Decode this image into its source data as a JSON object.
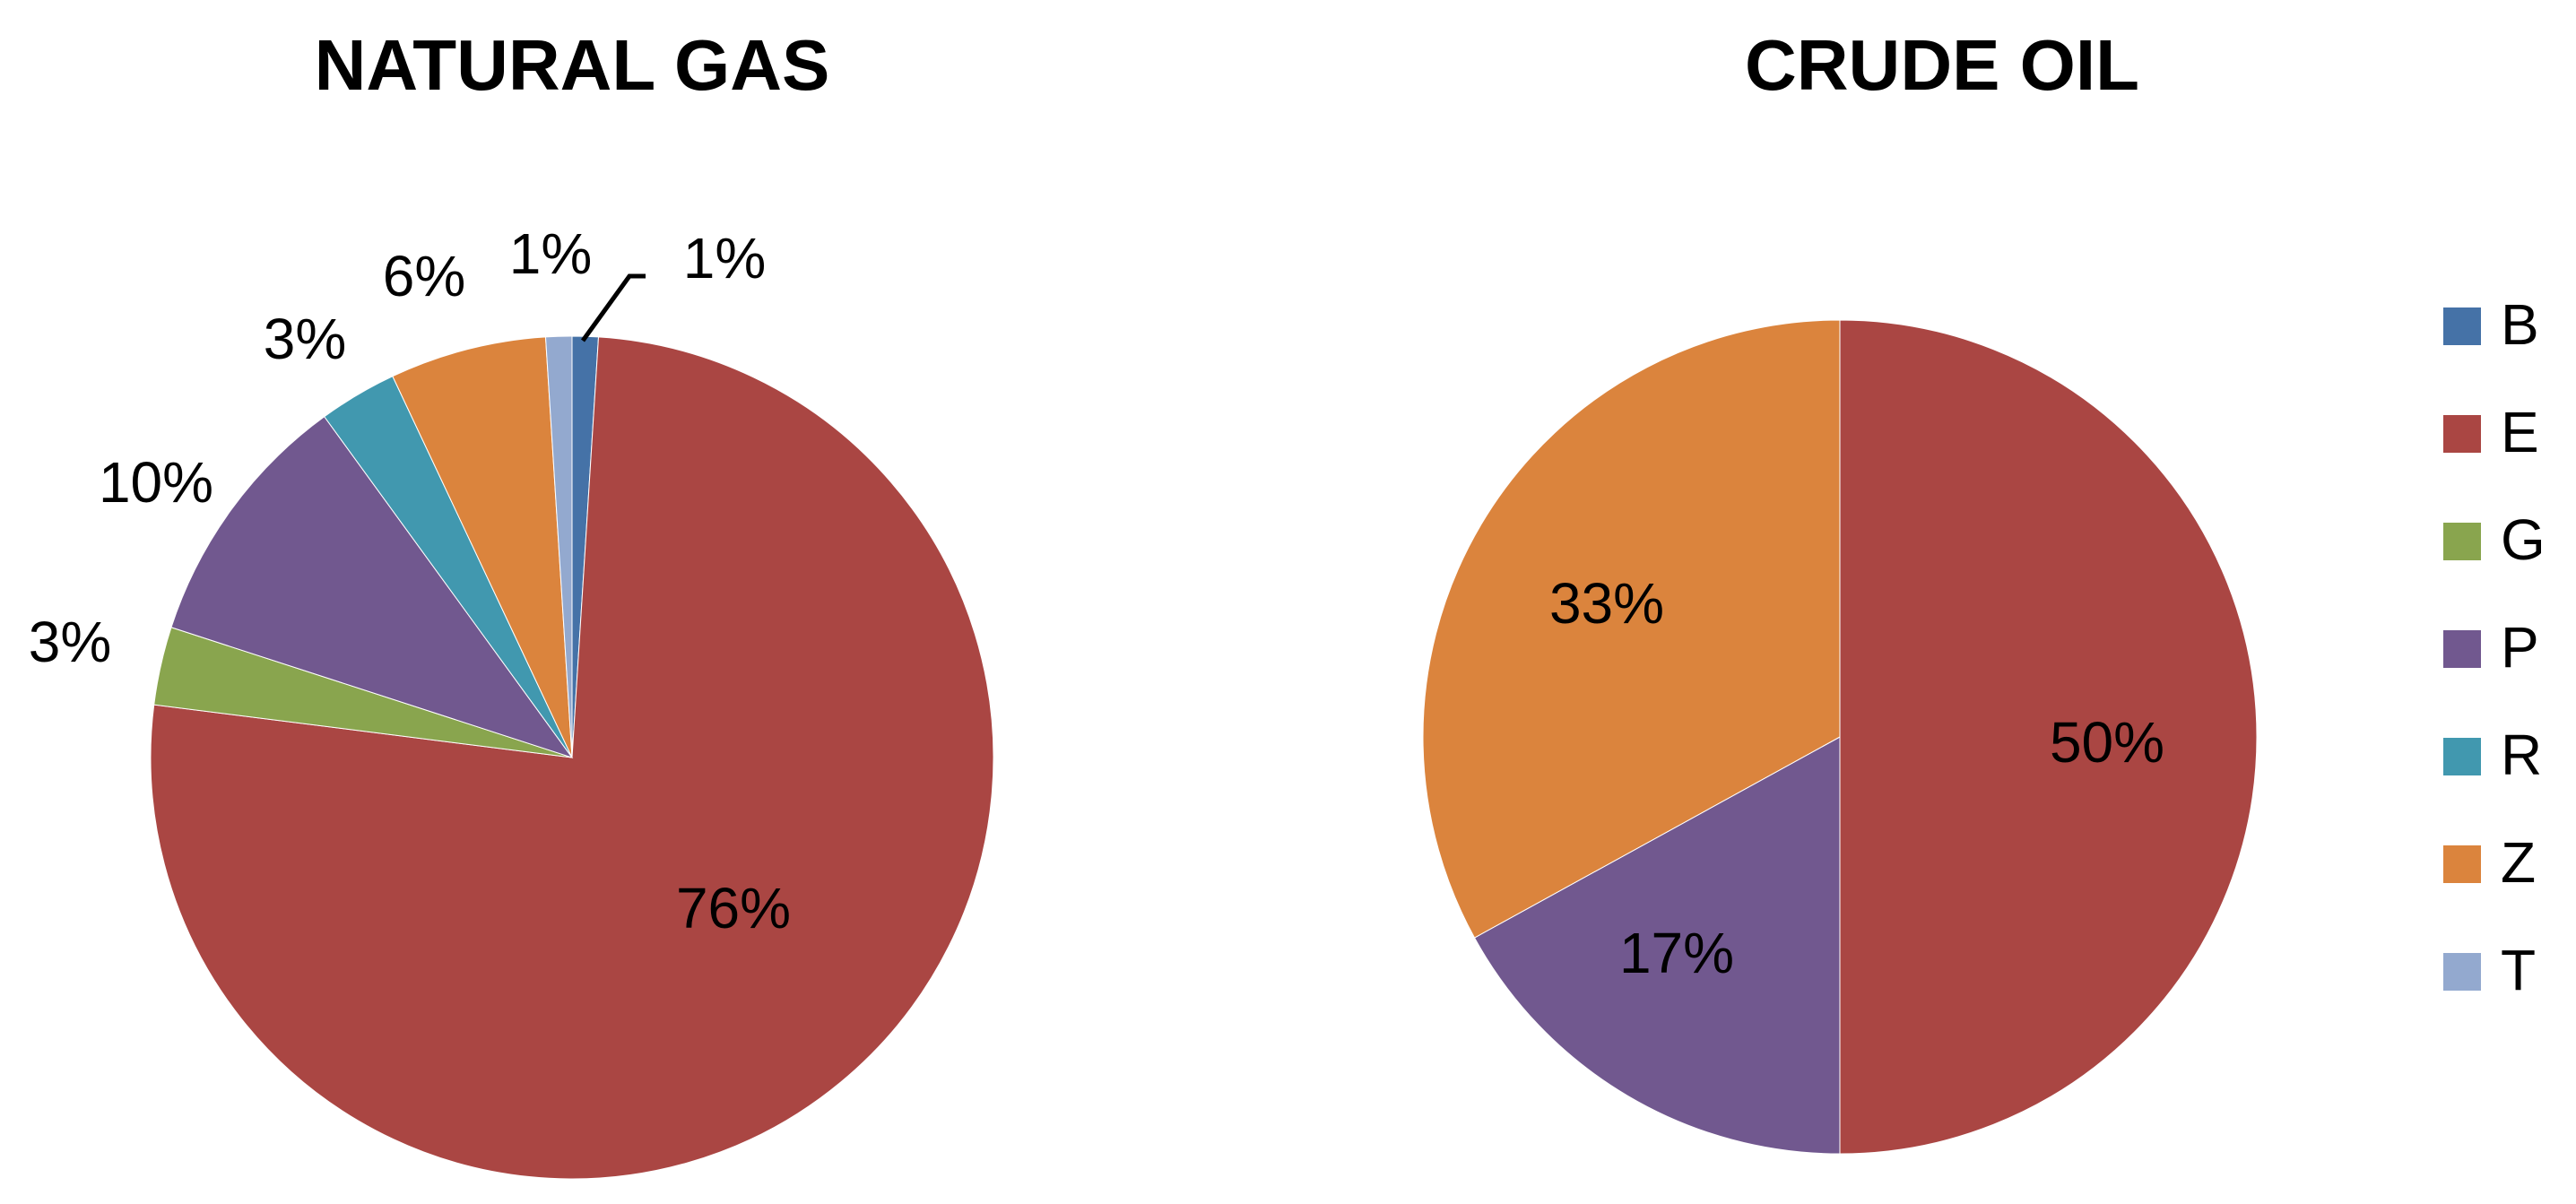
{
  "chart_data": [
    {
      "type": "pie",
      "title": "NATURAL GAS",
      "slices": [
        {
          "category": "B",
          "value": 1,
          "label": "1%",
          "color": "#4572A7"
        },
        {
          "category": "E",
          "value": 76,
          "label": "76%",
          "color": "#AA4643"
        },
        {
          "category": "G",
          "value": 3,
          "label": "3%",
          "color": "#89A54E"
        },
        {
          "category": "P",
          "value": 10,
          "label": "10%",
          "color": "#71588F"
        },
        {
          "category": "R",
          "value": 3,
          "label": "3%",
          "color": "#4198AF"
        },
        {
          "category": "Z",
          "value": 6,
          "label": "6%",
          "color": "#DB843D"
        },
        {
          "category": "T",
          "value": 1,
          "label": "1%",
          "color": "#93A9CF"
        }
      ]
    },
    {
      "type": "pie",
      "title": "CRUDE OIL",
      "slices": [
        {
          "category": "B",
          "value": 0,
          "label": "",
          "color": "#4572A7"
        },
        {
          "category": "E",
          "value": 50,
          "label": "50%",
          "color": "#AA4643"
        },
        {
          "category": "G",
          "value": 0,
          "label": "",
          "color": "#89A54E"
        },
        {
          "category": "P",
          "value": 17,
          "label": "17%",
          "color": "#71588F"
        },
        {
          "category": "R",
          "value": 0,
          "label": "",
          "color": "#4198AF"
        },
        {
          "category": "Z",
          "value": 33,
          "label": "33%",
          "color": "#DB843D"
        },
        {
          "category": "T",
          "value": 0,
          "label": "",
          "color": "#93A9CF"
        }
      ]
    }
  ],
  "legend": {
    "placement": "right",
    "items": [
      {
        "label": "B",
        "color": "#4572A7"
      },
      {
        "label": "E",
        "color": "#AA4643"
      },
      {
        "label": "G",
        "color": "#89A54E"
      },
      {
        "label": "P",
        "color": "#71588F"
      },
      {
        "label": "R",
        "color": "#4198AF"
      },
      {
        "label": "Z",
        "color": "#DB843D"
      },
      {
        "label": "T",
        "color": "#93A9CF"
      }
    ]
  }
}
